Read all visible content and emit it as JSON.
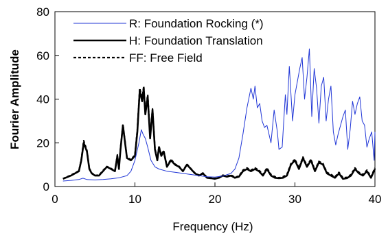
{
  "chart_data": {
    "type": "line",
    "title": "",
    "xlabel": "Frequency (Hz)",
    "ylabel": "Fourier Amplitude",
    "xlim": [
      0,
      40
    ],
    "ylim": [
      0,
      80
    ],
    "xticks": [
      0,
      10,
      20,
      30,
      40
    ],
    "yticks": [
      0,
      20,
      40,
      60,
      80
    ],
    "xtick_labels": [
      "0",
      "10",
      "20",
      "30",
      "40"
    ],
    "ytick_labels": [
      "0",
      "20",
      "40",
      "60",
      "80"
    ],
    "grid": false,
    "legend_position": "top",
    "series": [
      {
        "name": "R:  Foundation Rocking (*)",
        "color": "#1f35d6",
        "dash": "solid",
        "x": [
          1,
          2,
          3,
          3.5,
          4,
          5,
          6,
          7,
          8,
          9,
          9.5,
          10,
          10.5,
          10.8,
          11,
          11.3,
          11.6,
          12,
          12.5,
          13,
          14,
          15,
          16,
          17,
          18,
          19,
          20,
          21,
          22,
          22.5,
          23,
          23.5,
          24,
          24.5,
          24.8,
          25,
          25.3,
          25.6,
          25.9,
          26.2,
          26.5,
          27,
          27.4,
          27.8,
          28,
          28.4,
          28.8,
          29,
          29.3,
          29.7,
          30,
          30.3,
          30.6,
          30.9,
          31.2,
          31.5,
          31.8,
          32.1,
          32.4,
          32.7,
          33,
          33.3,
          33.6,
          33.9,
          34.2,
          34.5,
          34.8,
          35.1,
          35.4,
          35.7,
          36,
          36.3,
          36.6,
          36.9,
          37.2,
          37.5,
          37.8,
          38.1,
          38.4,
          38.7,
          39,
          39.3,
          39.6,
          39.9,
          40
        ],
        "values": [
          2.5,
          2.8,
          3.2,
          3.8,
          3.2,
          3,
          3.2,
          3.5,
          4,
          5,
          7,
          12,
          20,
          26,
          24,
          22,
          18,
          12,
          9,
          8,
          7,
          6.5,
          6,
          5.5,
          5,
          4.5,
          4.3,
          4.8,
          6,
          8,
          13,
          24,
          36,
          45,
          40,
          46,
          36,
          38,
          30,
          27,
          28,
          20,
          35,
          25,
          17,
          18,
          42,
          33,
          55,
          30,
          42,
          48,
          54,
          59,
          40,
          50,
          63,
          32,
          54,
          45,
          29,
          46,
          50,
          30,
          40,
          46,
          25,
          19,
          24,
          28,
          32,
          35,
          17,
          26,
          39,
          33,
          38,
          41,
          30,
          28,
          18,
          22,
          25,
          12,
          25
        ]
      },
      {
        "name": "H:  Foundation Translation",
        "color": "#000000",
        "dash": "solid",
        "x": [
          1,
          2,
          3,
          3.3,
          3.6,
          4,
          4.3,
          4.6,
          5,
          5.5,
          6,
          6.5,
          7,
          7.5,
          7.8,
          8,
          8.2,
          8.5,
          8.8,
          9,
          9.5,
          10,
          10.3,
          10.6,
          10.9,
          11.1,
          11.3,
          11.6,
          11.9,
          12.2,
          12.5,
          12.8,
          13,
          13.3,
          13.6,
          14,
          14.5,
          15,
          15.5,
          16,
          16.5,
          17,
          17.5,
          18,
          18.5,
          19,
          19.5,
          20,
          20.5,
          21,
          21.5,
          22,
          22.5,
          23,
          23.5,
          24,
          24.5,
          25,
          25.5,
          26,
          26.5,
          27,
          27.5,
          28,
          28.5,
          29,
          29.5,
          30,
          30.5,
          31,
          31.5,
          32,
          32.5,
          33,
          33.5,
          34,
          34.5,
          35,
          35.5,
          36,
          36.5,
          37,
          37.5,
          38,
          38.5,
          39,
          39.5,
          40
        ],
        "values": [
          3.5,
          5,
          7,
          12,
          20,
          16,
          8,
          6,
          5,
          5,
          7,
          9,
          8,
          7,
          14,
          8,
          17,
          28,
          19,
          13,
          12,
          14,
          25,
          44,
          39,
          45,
          33,
          41,
          22,
          35,
          17,
          12,
          18,
          14,
          16,
          9,
          12,
          10,
          9,
          7,
          10,
          8,
          6,
          5,
          6,
          4,
          3.8,
          3.5,
          4,
          5,
          4.5,
          5,
          4,
          4.5,
          7,
          8,
          7,
          8,
          7,
          5,
          8,
          5,
          4,
          3.8,
          4,
          5,
          10,
          12,
          8,
          13,
          9,
          12,
          7,
          11,
          10,
          6,
          5,
          4,
          6,
          3.5,
          3.8,
          5,
          8,
          6,
          5,
          7,
          4,
          8
        ]
      },
      {
        "name": "FF: Free Field",
        "color": "#000000",
        "dash": "dashed",
        "x": [
          1,
          2,
          3,
          3.3,
          3.6,
          4,
          4.3,
          4.6,
          5,
          5.5,
          6,
          6.5,
          7,
          7.5,
          7.8,
          8,
          8.2,
          8.5,
          8.8,
          9,
          9.5,
          10,
          10.3,
          10.6,
          10.9,
          11.1,
          11.3,
          11.6,
          11.9,
          12.2,
          12.5,
          12.8,
          13,
          13.3,
          13.6,
          14,
          14.5,
          15,
          15.5,
          16,
          16.5,
          17,
          17.5,
          18,
          18.5,
          19,
          19.5,
          20,
          20.5,
          21,
          21.5,
          22,
          22.5,
          23,
          23.5,
          24,
          24.5,
          25,
          25.5,
          26,
          26.5,
          27,
          27.5,
          28,
          28.5,
          29,
          29.5,
          30,
          30.5,
          31,
          31.5,
          32,
          32.5,
          33,
          33.5,
          34,
          34.5,
          35,
          35.5,
          36,
          36.5,
          37,
          37.5,
          38,
          38.5,
          39,
          39.5,
          40
        ],
        "values": [
          3.6,
          5.2,
          7.2,
          12.5,
          21,
          16.5,
          8.3,
          6.2,
          5.1,
          5.2,
          7.3,
          9.2,
          8.3,
          7.2,
          14.5,
          8.2,
          17.5,
          28.5,
          19.5,
          13.3,
          12.3,
          14.5,
          26,
          45,
          40,
          46,
          34,
          42,
          23,
          35.5,
          17.5,
          12.3,
          18.5,
          14.5,
          16.5,
          9.3,
          12.5,
          10.3,
          9.3,
          7.2,
          10.3,
          8.2,
          6.2,
          5.2,
          6.2,
          4.2,
          4,
          3.7,
          4.2,
          5.2,
          4.7,
          5.3,
          4.2,
          4.8,
          7.5,
          8.5,
          7.5,
          8.5,
          7.5,
          5.5,
          8.5,
          5.5,
          4.5,
          4,
          4.5,
          5.5,
          10.5,
          12.5,
          8.5,
          13.5,
          9.5,
          12.5,
          7.5,
          11.5,
          10.5,
          6.5,
          5.5,
          4.5,
          6.5,
          4,
          4.2,
          5.5,
          8.5,
          6.5,
          5.5,
          7.5,
          4.5,
          8.5
        ]
      }
    ]
  }
}
